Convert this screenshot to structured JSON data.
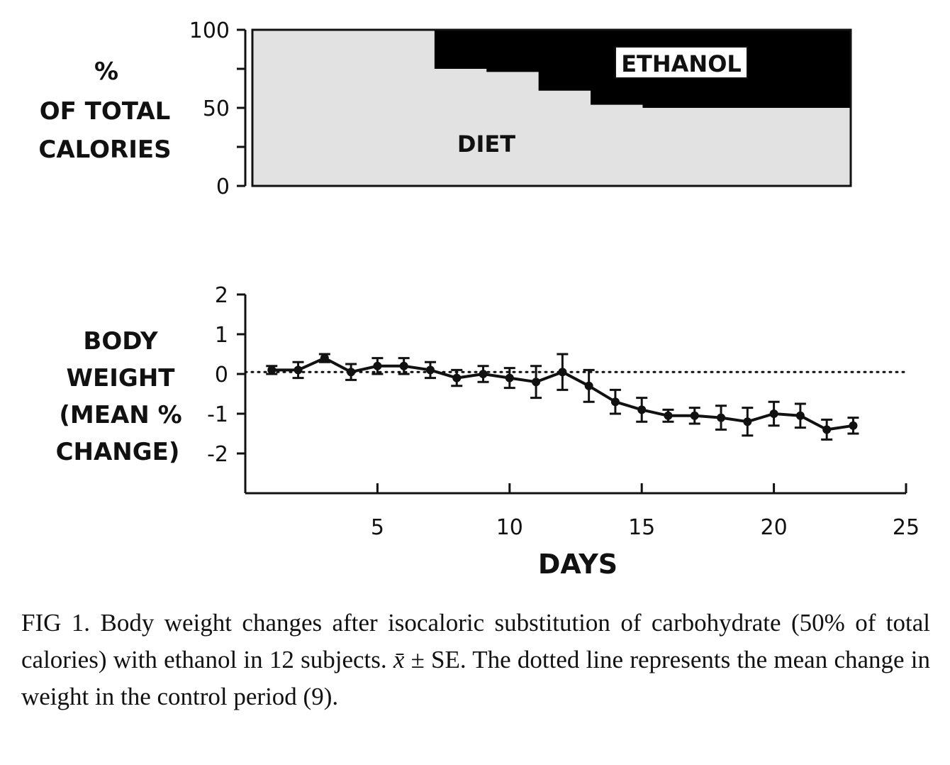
{
  "chart_data": [
    {
      "type": "area",
      "ylabel_lines": [
        "%",
        "OF TOTAL",
        "CALORIES"
      ],
      "ylim": [
        0,
        100
      ],
      "yticks": [
        0,
        50,
        100
      ],
      "xlim": [
        0,
        23
      ],
      "bands": [
        {
          "name": "ETHANOL",
          "color": "#000000"
        },
        {
          "name": "DIET",
          "color": "#e2e2e2"
        }
      ],
      "diet_percent_steps": [
        {
          "x_start": 0,
          "x_end": 7,
          "value": 100
        },
        {
          "x_start": 7,
          "x_end": 9,
          "value": 75
        },
        {
          "x_start": 9,
          "x_end": 11,
          "value": 73
        },
        {
          "x_start": 11,
          "x_end": 13,
          "value": 61
        },
        {
          "x_start": 13,
          "x_end": 15,
          "value": 52
        },
        {
          "x_start": 15,
          "x_end": 23,
          "value": 50
        }
      ]
    },
    {
      "type": "line",
      "ylabel_lines": [
        "BODY",
        "WEIGHT",
        "(MEAN %",
        "CHANGE)"
      ],
      "xlabel": "DAYS",
      "xlim": [
        0,
        25
      ],
      "ylim": [
        -3,
        2
      ],
      "xticks": [
        5,
        10,
        15,
        20,
        25
      ],
      "yticks": [
        2,
        1,
        0,
        -1,
        -2
      ],
      "ytick_labels": [
        "2",
        "1",
        "0",
        "-1",
        "-2"
      ],
      "reference_line": 0.05,
      "x": [
        1,
        2,
        3,
        4,
        5,
        6,
        7,
        8,
        9,
        10,
        11,
        12,
        13,
        14,
        15,
        16,
        17,
        18,
        19,
        20,
        21,
        22,
        23
      ],
      "y": [
        0.1,
        0.1,
        0.4,
        0.05,
        0.2,
        0.2,
        0.1,
        -0.1,
        0.0,
        -0.1,
        -0.2,
        0.05,
        -0.3,
        -0.7,
        -0.9,
        -1.05,
        -1.05,
        -1.1,
        -1.2,
        -1.0,
        -1.05,
        -1.4,
        -1.3
      ],
      "se": [
        0.1,
        0.2,
        0.1,
        0.2,
        0.2,
        0.2,
        0.2,
        0.2,
        0.2,
        0.25,
        0.4,
        0.45,
        0.4,
        0.3,
        0.3,
        0.15,
        0.2,
        0.3,
        0.35,
        0.3,
        0.3,
        0.25,
        0.2
      ]
    }
  ],
  "caption": {
    "fig_label": "FIG 1.",
    "text_before": " Body weight changes after isocaloric substitution of carbohydrate (50% of total calories) with ethanol in 12 subjects. ",
    "xbar": "x̄",
    "text_after": " ± SE. The dotted line represents the mean change in weight in the control period (9)."
  }
}
